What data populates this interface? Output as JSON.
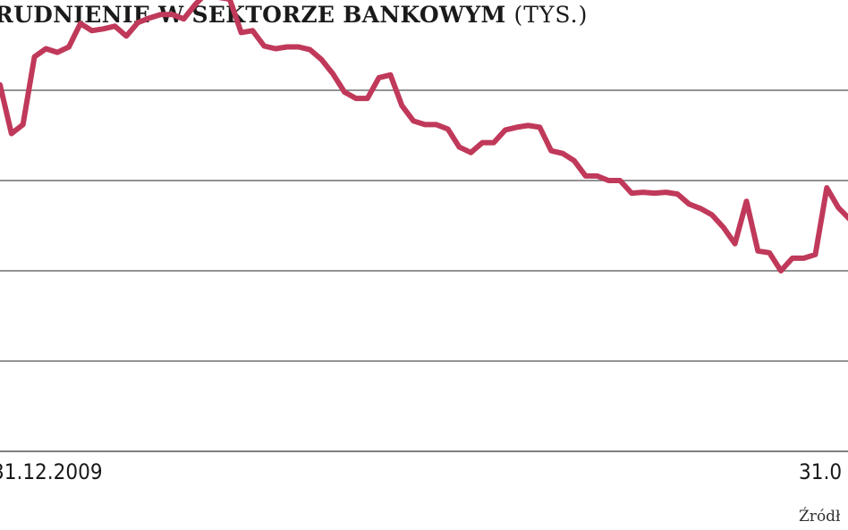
{
  "chart_data": {
    "type": "line",
    "title": "RUDNIENIE W SEKTORZE BANKOWYM",
    "title_unit": "(TYS.)",
    "xlabel": "",
    "ylabel": "",
    "x_tick_labels": [
      "31.12.2009",
      "31.0"
    ],
    "y_tick_labels": [],
    "grid": true,
    "legend": "none",
    "line_color": "#c0395a",
    "series": [
      {
        "values": [
          4.06,
          3.52,
          3.62,
          4.37,
          4.46,
          4.42,
          4.48,
          4.74,
          4.66,
          4.68,
          4.71,
          4.6,
          4.75,
          4.8,
          4.84,
          4.84,
          4.79,
          4.95,
          5.08,
          5.03,
          5.01,
          4.64,
          4.66,
          4.49,
          4.46,
          4.48,
          4.48,
          4.45,
          4.34,
          4.18,
          3.98,
          3.91,
          3.91,
          4.14,
          4.17,
          3.83,
          3.66,
          3.62,
          3.62,
          3.57,
          3.37,
          3.31,
          3.42,
          3.42,
          3.56,
          3.59,
          3.61,
          3.59,
          3.33,
          3.3,
          3.22,
          3.05,
          3.05,
          3.0,
          3.0,
          2.86,
          2.87,
          2.86,
          2.87,
          2.85,
          2.74,
          2.69,
          2.62,
          2.48,
          2.3,
          2.77,
          2.22,
          2.2,
          2.0,
          2.14,
          2.14,
          2.18,
          2.92,
          2.7,
          2.57
        ]
      }
    ]
  },
  "source": {
    "text": "Źródł"
  }
}
